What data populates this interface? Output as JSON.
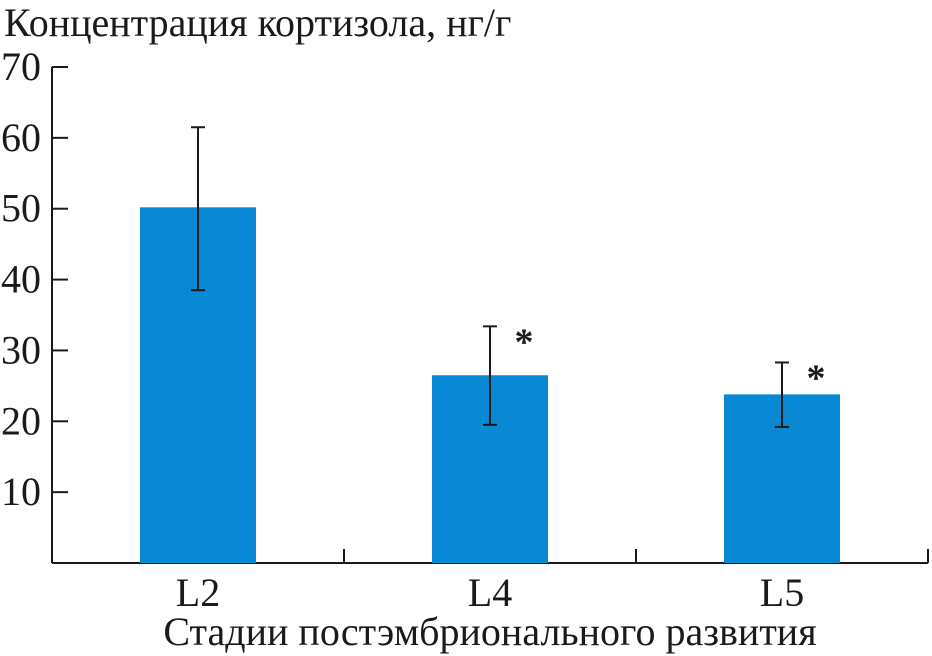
{
  "chart_data": {
    "type": "bar",
    "title": "",
    "ylabel": "Концентрация кортизола, нг/г",
    "xlabel": "Стадии постэмбрионального развития",
    "categories": [
      "L2",
      "L4",
      "L5"
    ],
    "values": [
      50.2,
      26.5,
      23.8
    ],
    "errors": [
      {
        "low": 38.5,
        "high": 61.5
      },
      {
        "low": 19.5,
        "high": 33.4
      },
      {
        "low": 19.2,
        "high": 28.3
      }
    ],
    "annotations": [
      "",
      "*",
      "*"
    ],
    "yticks": [
      10,
      20,
      30,
      40,
      50,
      60,
      70
    ],
    "ylim": [
      0,
      70
    ],
    "bar_color": "#0989d4",
    "grid": false,
    "legend": false
  }
}
